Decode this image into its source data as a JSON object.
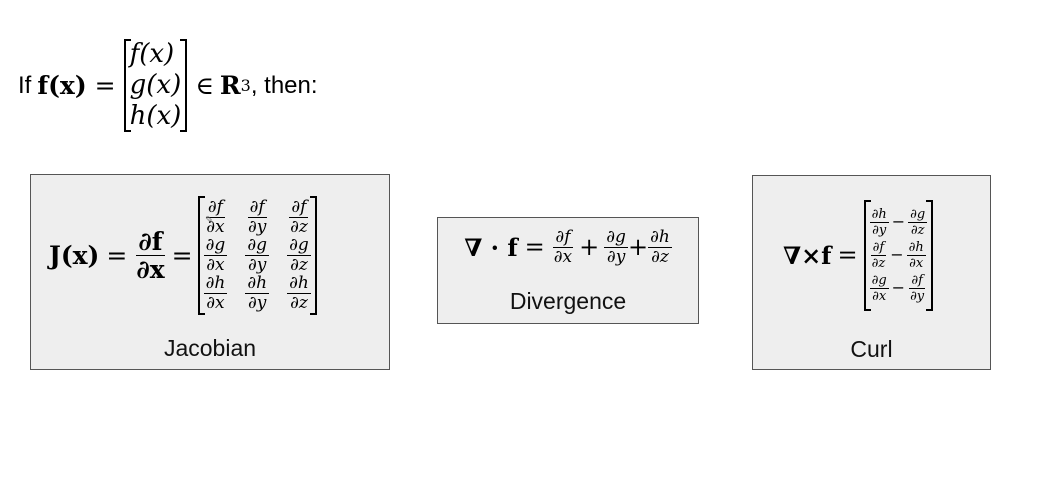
{
  "header": {
    "if_word": "If",
    "lhs": "f(x)",
    "eq": "=",
    "components": [
      "f(x)",
      "g(x)",
      "h(x)"
    ],
    "member": "∈",
    "space": "R",
    "exponent": "3",
    "then_word": ", then:"
  },
  "jacobian": {
    "lhs": "J(x)",
    "eq": "=",
    "partial_num": "∂f",
    "partial_den": "∂x",
    "eq2": "=",
    "matrix": [
      [
        {
          "num": "∂f",
          "den": "∂x"
        },
        {
          "num": "∂f",
          "den": "∂y"
        },
        {
          "num": "∂f",
          "den": "∂z"
        }
      ],
      [
        {
          "num": "∂g",
          "den": "∂x"
        },
        {
          "num": "∂g",
          "den": "∂y"
        },
        {
          "num": "∂g",
          "den": "∂z"
        }
      ],
      [
        {
          "num": "∂h",
          "den": "∂x"
        },
        {
          "num": "∂h",
          "den": "∂y"
        },
        {
          "num": "∂h",
          "den": "∂z"
        }
      ]
    ],
    "caption": "Jacobian"
  },
  "divergence": {
    "lhs": "∇ · f",
    "eq": "=",
    "terms": [
      {
        "num": "∂f",
        "den": "∂x"
      },
      {
        "num": "∂g",
        "den": "∂y"
      },
      {
        "num": "∂h",
        "den": "∂z"
      }
    ],
    "plus": "+",
    "caption": "Divergence"
  },
  "curl": {
    "lhs": "∇×f",
    "eq": "=",
    "rows": [
      {
        "a": {
          "num": "∂h",
          "den": "∂y"
        },
        "b": {
          "num": "∂g",
          "den": "∂z"
        }
      },
      {
        "a": {
          "num": "∂f",
          "den": "∂z"
        },
        "b": {
          "num": "∂h",
          "den": "∂x"
        }
      },
      {
        "a": {
          "num": "∂g",
          "den": "∂x"
        },
        "b": {
          "num": "∂f",
          "den": "∂y"
        }
      }
    ],
    "minus": "−",
    "caption": "Curl"
  }
}
